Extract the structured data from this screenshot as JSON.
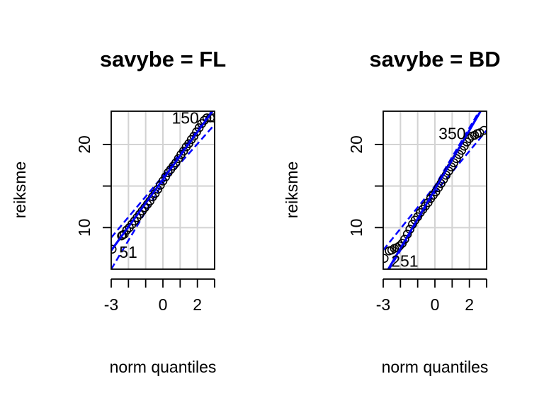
{
  "chart_data": [
    {
      "type": "scatter",
      "title": "savybe = FL",
      "xlabel": "norm quantiles",
      "ylabel": "reiksme",
      "xlim": [
        -3,
        3
      ],
      "ylim": [
        5,
        24
      ],
      "xticks": [
        -3,
        -2,
        -1,
        0,
        1,
        2,
        3
      ],
      "xtick_labels": [
        "-3",
        "",
        "",
        "0",
        "",
        "2",
        ""
      ],
      "yticks": [
        10,
        15,
        20
      ],
      "ytick_labels": [
        "10",
        "",
        "20"
      ],
      "grid": true,
      "colors": {
        "points": "#000000",
        "lines": "#0000ff",
        "grid": "#d3d3d3"
      },
      "reference_line": {
        "intercept": 15.8,
        "slope": 2.85
      },
      "envelope": {
        "x": [
          -3,
          0,
          3
        ],
        "upper": [
          8.8,
          16.2,
          24.5
        ],
        "lower": [
          5.0,
          15.4,
          22.4
        ]
      },
      "labeled_points": [
        {
          "label": "150",
          "x": 2.5,
          "y": 23.2
        },
        {
          "label": "51",
          "x": -2.95,
          "y": 7.4
        }
      ],
      "series": [
        {
          "x": [
            -2.95,
            -2.4,
            -2.35,
            -2.25,
            -2.1,
            -1.95,
            -1.8,
            -1.65,
            -1.5,
            -1.35,
            -1.2,
            -1.05,
            -0.9,
            -0.75,
            -0.6,
            -0.45,
            -0.3,
            -0.15,
            0.0,
            0.15,
            0.3,
            0.45,
            0.6,
            0.75,
            0.9,
            1.05,
            1.2,
            1.35,
            1.5,
            1.65,
            1.8,
            1.95,
            2.1,
            2.25,
            2.4,
            2.55,
            2.75,
            2.95
          ],
          "y": [
            7.4,
            9.0,
            9.1,
            9.2,
            9.7,
            10.0,
            10.4,
            10.8,
            11.2,
            11.6,
            12.0,
            12.4,
            12.8,
            13.2,
            13.7,
            14.1,
            14.6,
            15.1,
            15.6,
            16.1,
            16.6,
            17.0,
            17.4,
            17.8,
            18.3,
            18.8,
            19.2,
            19.7,
            20.1,
            20.6,
            21.0,
            21.5,
            22.0,
            22.5,
            22.9,
            23.2,
            23.2,
            23.2
          ]
        }
      ]
    },
    {
      "type": "scatter",
      "title": "savybe = BD",
      "xlabel": "norm quantiles",
      "ylabel": "reiksme",
      "xlim": [
        -3,
        3
      ],
      "ylim": [
        5,
        24
      ],
      "xticks": [
        -3,
        -2,
        -1,
        0,
        1,
        2,
        3
      ],
      "xtick_labels": [
        "-3",
        "",
        "",
        "0",
        "",
        "2",
        ""
      ],
      "yticks": [
        10,
        15,
        20
      ],
      "ytick_labels": [
        "10",
        "",
        "20"
      ],
      "grid": true,
      "colors": {
        "points": "#000000",
        "lines": "#0000ff",
        "grid": "#d3d3d3"
      },
      "reference_line": {
        "intercept": 14.6,
        "slope": 3.55
      },
      "envelope": {
        "x": [
          -3,
          0,
          3
        ],
        "upper": [
          7.3,
          15.0,
          25.5
        ],
        "lower": [
          3.8,
          14.2,
          21.7
        ]
      },
      "labeled_points": [
        {
          "label": "350",
          "x": 2.2,
          "y": 21.3
        },
        {
          "label": "251",
          "x": -2.95,
          "y": 6.3
        }
      ],
      "series": [
        {
          "x": [
            -2.95,
            -2.65,
            -2.5,
            -2.35,
            -2.2,
            -2.05,
            -1.9,
            -1.75,
            -1.6,
            -1.45,
            -1.3,
            -1.15,
            -1.0,
            -0.85,
            -0.7,
            -0.55,
            -0.4,
            -0.25,
            -0.1,
            0.05,
            0.2,
            0.35,
            0.5,
            0.65,
            0.8,
            0.95,
            1.1,
            1.25,
            1.4,
            1.55,
            1.7,
            1.85,
            2.0,
            2.15,
            2.3,
            2.45,
            2.6,
            2.85
          ],
          "y": [
            6.3,
            7.2,
            7.3,
            7.5,
            7.6,
            7.8,
            8.1,
            8.6,
            9.2,
            9.8,
            10.4,
            10.9,
            11.3,
            11.8,
            12.2,
            12.6,
            13.0,
            13.5,
            13.9,
            14.3,
            14.8,
            15.3,
            15.8,
            16.3,
            16.8,
            17.3,
            17.8,
            18.3,
            18.8,
            19.3,
            19.8,
            20.3,
            20.7,
            21.0,
            21.1,
            21.3,
            21.4,
            21.7
          ]
        }
      ]
    }
  ]
}
